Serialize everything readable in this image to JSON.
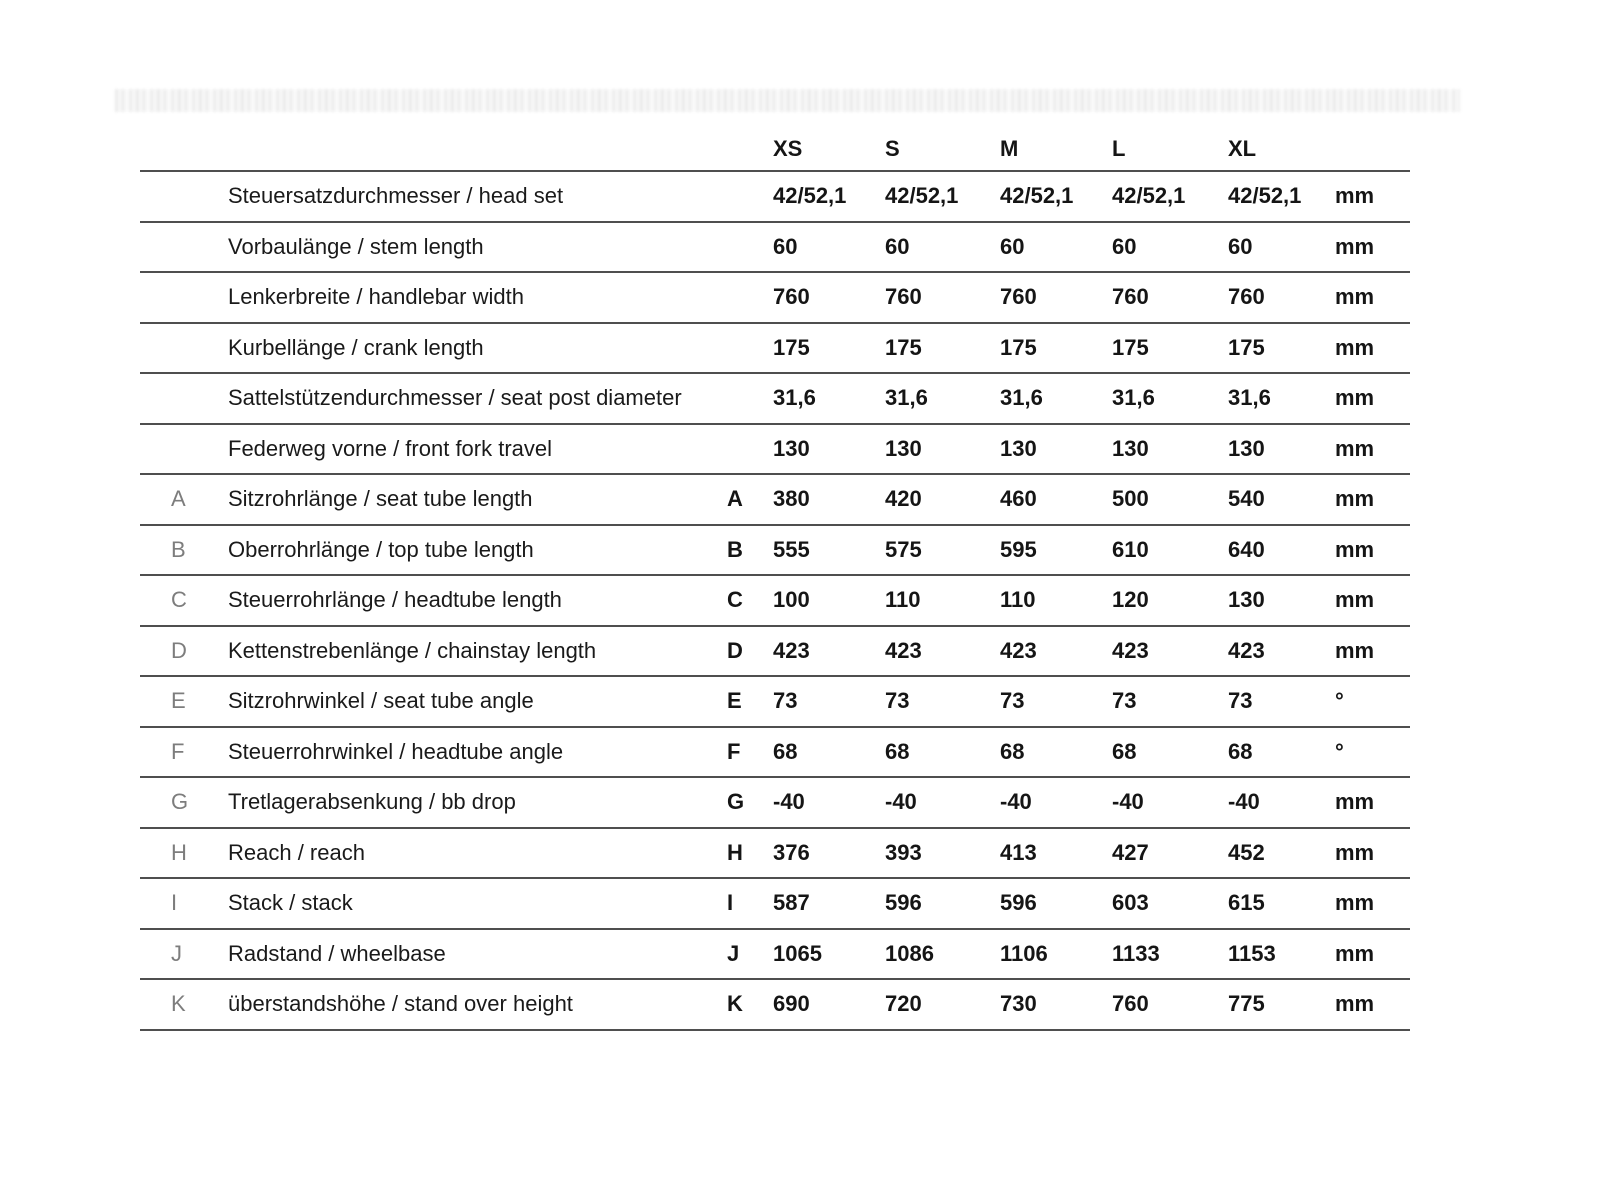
{
  "page": {
    "background_color": "#ffffff",
    "line_color": "#4f4f4f",
    "letter_gray_color": "#7d7d7d",
    "text_color": "#151515",
    "blur_band_note": "illegible blurred line of text above the table"
  },
  "table": {
    "size_headers": [
      "XS",
      "S",
      "M",
      "L",
      "XL"
    ],
    "rows": [
      {
        "letter": "",
        "label": "Steuersatzdurchmesser / head set",
        "values": [
          "42/52,1",
          "42/52,1",
          "42/52,1",
          "42/52,1",
          "42/52,1"
        ],
        "unit": "mm"
      },
      {
        "letter": "",
        "label": "Vorbaulänge / stem length",
        "values": [
          "60",
          "60",
          "60",
          "60",
          "60"
        ],
        "unit": "mm"
      },
      {
        "letter": "",
        "label": "Lenkerbreite / handlebar width",
        "values": [
          "760",
          "760",
          "760",
          "760",
          "760"
        ],
        "unit": "mm"
      },
      {
        "letter": "",
        "label": "Kurbellänge / crank length",
        "values": [
          "175",
          "175",
          "175",
          "175",
          "175"
        ],
        "unit": "mm"
      },
      {
        "letter": "",
        "label": "Sattelstützendurchmesser / seat post diameter",
        "values": [
          "31,6",
          "31,6",
          "31,6",
          "31,6",
          "31,6"
        ],
        "unit": "mm"
      },
      {
        "letter": "",
        "label": "Federweg vorne / front fork travel",
        "values": [
          "130",
          "130",
          "130",
          "130",
          "130"
        ],
        "unit": "mm"
      },
      {
        "letter": "A",
        "label": "Sitzrohrlänge / seat tube length",
        "values": [
          "380",
          "420",
          "460",
          "500",
          "540"
        ],
        "unit": "mm"
      },
      {
        "letter": "B",
        "label": "Oberrohrlänge / top tube length",
        "values": [
          "555",
          "575",
          "595",
          "610",
          "640"
        ],
        "unit": "mm"
      },
      {
        "letter": "C",
        "label": "Steuerrohrlänge / headtube length",
        "values": [
          "100",
          "110",
          "110",
          "120",
          "130"
        ],
        "unit": "mm"
      },
      {
        "letter": "D",
        "label": "Kettenstrebenlänge / chainstay length",
        "values": [
          "423",
          "423",
          "423",
          "423",
          "423"
        ],
        "unit": "mm"
      },
      {
        "letter": "E",
        "label": "Sitzrohrwinkel / seat tube angle",
        "values": [
          "73",
          "73",
          "73",
          "73",
          "73"
        ],
        "unit": "°"
      },
      {
        "letter": "F",
        "label": "Steuerrohrwinkel / headtube angle",
        "values": [
          "68",
          "68",
          "68",
          "68",
          "68"
        ],
        "unit": "°"
      },
      {
        "letter": "G",
        "label": "Tretlagerabsenkung / bb drop",
        "values": [
          "-40",
          "-40",
          "-40",
          "-40",
          "-40"
        ],
        "unit": "mm"
      },
      {
        "letter": "H",
        "label": "Reach / reach",
        "values": [
          "376",
          "393",
          "413",
          "427",
          "452"
        ],
        "unit": "mm"
      },
      {
        "letter": "I",
        "label": "Stack / stack",
        "values": [
          "587",
          "596",
          "596",
          "603",
          "615"
        ],
        "unit": "mm"
      },
      {
        "letter": "J",
        "label": "Radstand / wheelbase",
        "values": [
          "1065",
          "1086",
          "1106",
          "1133",
          "1153"
        ],
        "unit": "mm"
      },
      {
        "letter": "K",
        "label": "überstandshöhe / stand over height",
        "values": [
          "690",
          "720",
          "730",
          "760",
          "775"
        ],
        "unit": "mm"
      }
    ]
  }
}
